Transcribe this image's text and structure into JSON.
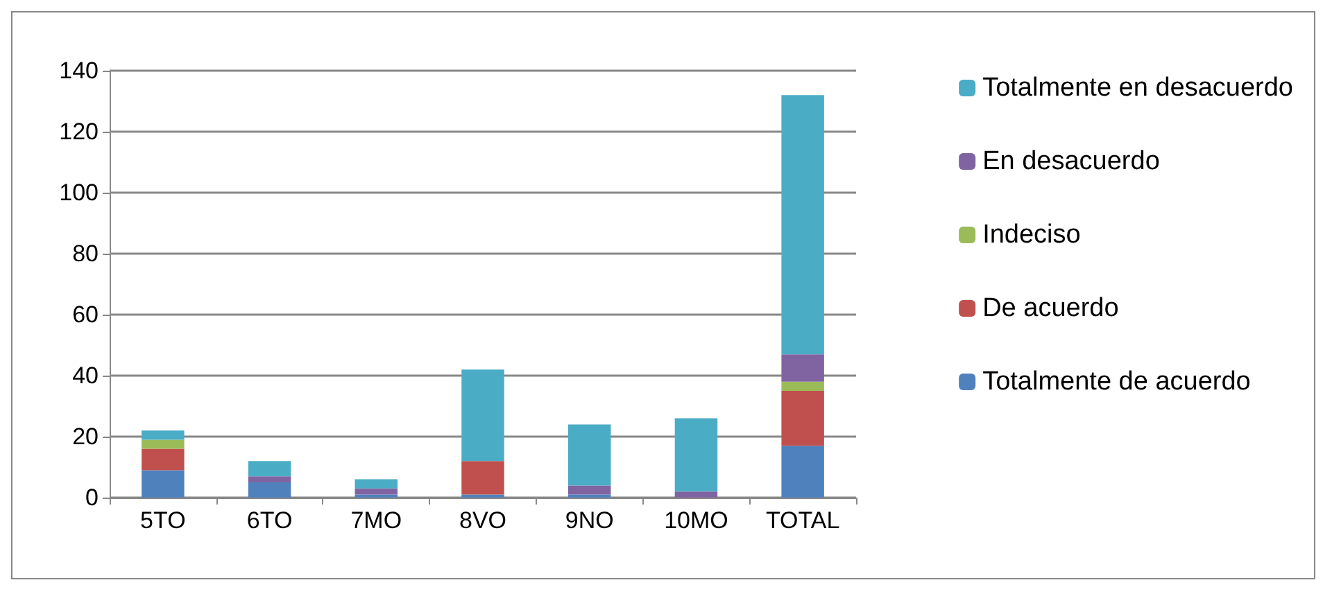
{
  "chart_data": {
    "type": "bar",
    "stacked": true,
    "categories": [
      "5TO",
      "6TO",
      "7MO",
      "8VO",
      "9NO",
      "10MO",
      "TOTAL"
    ],
    "series": [
      {
        "name": "Totalmente de acuerdo",
        "color": "#4f81bd",
        "values": [
          9,
          5,
          1,
          1,
          1,
          0,
          17
        ]
      },
      {
        "name": "De acuerdo",
        "color": "#c0504d",
        "values": [
          7,
          0,
          0,
          11,
          0,
          0,
          18
        ]
      },
      {
        "name": "Indeciso",
        "color": "#9bbb59",
        "values": [
          3,
          0,
          0,
          0,
          0,
          0,
          3
        ]
      },
      {
        "name": "En desacuerdo",
        "color": "#8064a2",
        "values": [
          0,
          2,
          2,
          0,
          3,
          2,
          9
        ]
      },
      {
        "name": "Totalmente en desacuerdo",
        "color": "#4bacc6",
        "values": [
          3,
          5,
          3,
          30,
          20,
          24,
          85
        ]
      }
    ],
    "ylim": [
      0,
      140
    ],
    "yticks": [
      0,
      20,
      40,
      60,
      80,
      100,
      120,
      140
    ],
    "grid": "y",
    "legend": "right"
  }
}
